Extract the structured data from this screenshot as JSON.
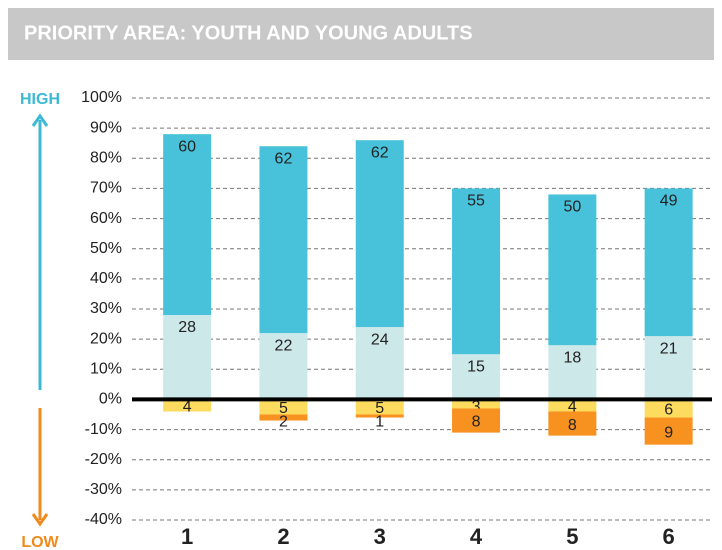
{
  "chart_data": {
    "type": "bar",
    "title": "PRIORITY AREA: YOUTH AND YOUNG ADULTS",
    "high_label": "HIGH",
    "low_label": "LOW",
    "categories": [
      "1",
      "2",
      "3",
      "4",
      "5",
      "6"
    ],
    "series": [
      {
        "color": "#cde8e9",
        "values": [
          28,
          22,
          24,
          15,
          18,
          21
        ]
      },
      {
        "color": "#47c2da",
        "values": [
          60,
          62,
          62,
          55,
          50,
          49
        ]
      },
      {
        "color": "#fddb5e",
        "values": [
          -4,
          -5,
          -5,
          -3,
          -4,
          -6
        ],
        "value_labels": [
          "4",
          "5",
          "5",
          "3",
          "4",
          "6"
        ]
      },
      {
        "color": "#f7911f",
        "values": [
          null,
          -2,
          -1,
          -8,
          -8,
          -9
        ],
        "value_labels": [
          null,
          "2",
          "1",
          "8",
          "8",
          "9"
        ]
      }
    ],
    "ylim": [
      -40,
      100
    ],
    "yticks": [
      {
        "value": 100,
        "label": "100%"
      },
      {
        "value": 90,
        "label": "90%"
      },
      {
        "value": 80,
        "label": "80%"
      },
      {
        "value": 70,
        "label": "70%"
      },
      {
        "value": 60,
        "label": "60%"
      },
      {
        "value": 50,
        "label": "50%"
      },
      {
        "value": 40,
        "label": "40%"
      },
      {
        "value": 30,
        "label": "30%"
      },
      {
        "value": 20,
        "label": "20%"
      },
      {
        "value": 10,
        "label": "10%"
      },
      {
        "value": 0,
        "label": "0%"
      },
      {
        "value": -10,
        "label": "-10%"
      },
      {
        "value": -20,
        "label": "-20%"
      },
      {
        "value": -30,
        "label": "-30%"
      },
      {
        "value": -40,
        "label": "-40%"
      }
    ],
    "grid": true
  }
}
